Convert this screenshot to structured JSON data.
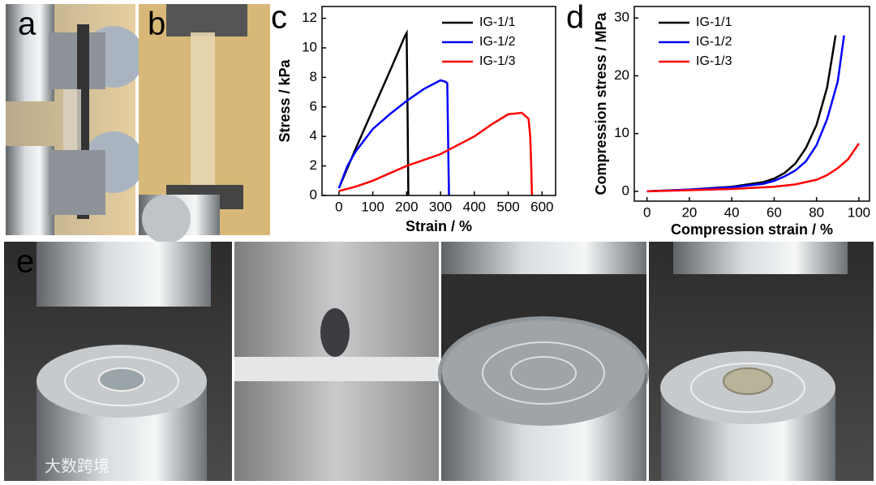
{
  "panel_labels": [
    "a",
    "b",
    "c",
    "d",
    "e"
  ],
  "watermark": "大数跨境",
  "chart_data": [
    {
      "type": "line",
      "xlabel": "Strain / %",
      "ylabel": "Stress / kPa",
      "xlim": [
        -50,
        640
      ],
      "ylim": [
        0,
        12.8
      ],
      "xticks": [
        0,
        100,
        200,
        300,
        400,
        500,
        600
      ],
      "yticks": [
        0,
        2,
        4,
        6,
        8,
        10,
        12
      ],
      "legend": "upper right",
      "series": [
        {
          "name": "IG-1/1",
          "color": "#000000",
          "x": [
            0,
            50,
            100,
            150,
            195,
            200,
            203,
            205
          ],
          "values": [
            0.5,
            3.2,
            5.8,
            8.4,
            10.8,
            11,
            5,
            0
          ]
        },
        {
          "name": "IG-1/2",
          "color": "#0000ff",
          "x": [
            0,
            25,
            50,
            100,
            150,
            200,
            250,
            300,
            315,
            320,
            323,
            325
          ],
          "values": [
            0.5,
            2,
            3,
            4.5,
            5.5,
            6.4,
            7.2,
            7.8,
            7.7,
            7.6,
            3,
            0
          ]
        },
        {
          "name": "IG-1/3",
          "color": "#ff0000",
          "x": [
            0,
            50,
            100,
            200,
            300,
            400,
            450,
            500,
            540,
            560,
            565,
            568,
            570
          ],
          "values": [
            0.3,
            0.6,
            1,
            2,
            2.8,
            4,
            4.8,
            5.5,
            5.6,
            5.2,
            4,
            2,
            0
          ]
        }
      ]
    },
    {
      "type": "line",
      "xlabel": "Compression strain / %",
      "ylabel": "Compression stress / MPa",
      "xlim": [
        -6,
        105
      ],
      "ylim": [
        -1.7,
        32
      ],
      "xticks": [
        0,
        20,
        40,
        60,
        80,
        100
      ],
      "yticks": [
        0,
        10,
        20,
        30
      ],
      "legend": "upper left",
      "series": [
        {
          "name": "IG-1/1",
          "color": "#000000",
          "x": [
            0,
            20,
            40,
            55,
            60,
            65,
            70,
            75,
            80,
            85,
            89
          ],
          "values": [
            0,
            0.3,
            0.8,
            1.6,
            2.2,
            3.2,
            4.8,
            7.5,
            11.5,
            18,
            27
          ]
        },
        {
          "name": "IG-1/2",
          "color": "#0000ff",
          "x": [
            0,
            20,
            40,
            55,
            60,
            65,
            70,
            75,
            80,
            85,
            90,
            93
          ],
          "values": [
            0,
            0.3,
            0.7,
            1.3,
            1.8,
            2.6,
            3.6,
            5.2,
            8,
            12.5,
            19,
            27
          ]
        },
        {
          "name": "IG-1/3",
          "color": "#ff0000",
          "x": [
            0,
            20,
            40,
            60,
            70,
            80,
            85,
            90,
            95,
            100
          ],
          "values": [
            0,
            0.2,
            0.4,
            0.8,
            1.2,
            2,
            2.8,
            4,
            5.6,
            8.3
          ]
        }
      ]
    }
  ]
}
